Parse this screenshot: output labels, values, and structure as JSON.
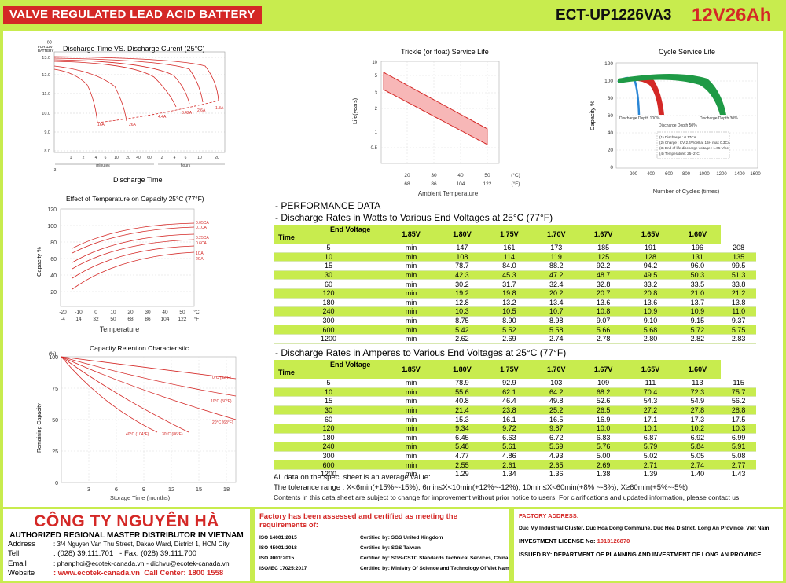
{
  "header": {
    "title": "VALVE REGULATED LEAD ACID BATTERY",
    "model": "ECT-UP1226VA3",
    "rating": "12V26Ah"
  },
  "chart1": {
    "title": "Discharge Time VS. Discharge Curent (25°C)",
    "yunit": "(v)",
    "ynote1": "FOR 12V",
    "ynote2": "BATTERY",
    "yticks": [
      "13.0",
      "12.0",
      "11.0",
      "10.0",
      "9.0",
      "8.0"
    ],
    "xticks": [
      "1",
      "2",
      "4",
      "6",
      "10",
      "20",
      "40",
      "60",
      "2",
      "4",
      "6",
      "10",
      "20"
    ],
    "xbottom": "3",
    "minutes": "minutes",
    "hours": "hours",
    "xlabel": "Discharge Time",
    "curve_labels": [
      "1.3A",
      "2.6A",
      "3.42A",
      "4.4A",
      "16A",
      "26A"
    ]
  },
  "chart2": {
    "title": "Trickle (or float) Service Life",
    "ylabel": "Life(years)",
    "yticks": [
      "10",
      "5",
      "3",
      "2",
      "1",
      "0.5"
    ],
    "xticks_c": [
      "20",
      "30",
      "40",
      "50"
    ],
    "xticks_f": [
      "68",
      "86",
      "104",
      "122"
    ],
    "unit_c": "(°C)",
    "unit_f": "(°F)",
    "xlabel": "Ambient Temperature"
  },
  "chart3": {
    "title": "Cycle Service Life",
    "ylabel": "Capacity %",
    "yticks": [
      "120",
      "100",
      "80",
      "60",
      "40",
      "20",
      "0"
    ],
    "xticks": [
      "200",
      "400",
      "600",
      "800",
      "1000",
      "1200",
      "1400",
      "1600"
    ],
    "xlabel": "Number of Cycles (times)",
    "dod100": "Discharge Depth 100%",
    "dod50": "Discharge Depth 50%",
    "dod30": "Discharge Depth 30%",
    "notes": [
      "(1) Discharge : 0.17CA",
      "(2) Charge : CV 2.4V/cell at 16H max 0.3CA",
      "(3) End of life discharge voltage : 1.65 V/pc",
      "(4) Temperature: 25+2°C"
    ]
  },
  "chart4": {
    "title": "Effect of Temperature on Capacity 25°C (77°F)",
    "ylabel": "Capacity %",
    "yticks": [
      "120",
      "100",
      "80",
      "60",
      "40",
      "20"
    ],
    "xticks_c": [
      "-20",
      "-10",
      "0",
      "10",
      "20",
      "30",
      "40",
      "50"
    ],
    "xticks_f": [
      "-4",
      "14",
      "32",
      "50",
      "68",
      "86",
      "104",
      "122"
    ],
    "unit_c": "°C",
    "unit_f": "°F",
    "xlabel": "Temperature",
    "labels": [
      "0.05CA",
      "0.1CA",
      "0.25CA",
      "0.6CA",
      "1CA",
      "2CA"
    ]
  },
  "chart5": {
    "title": "Capacity Retention Characteristic",
    "yunit": "(%)",
    "ylabel": "Remaining Capacity",
    "yticks": [
      "100",
      "75",
      "50",
      "25",
      "0"
    ],
    "xticks": [
      "3",
      "6",
      "9",
      "12",
      "15",
      "18"
    ],
    "xlabel": "Storage Time (months)",
    "labels": [
      "0°C (32°F)",
      "10°C (50°F)",
      "20°C (68°F)",
      "30°C (86°F)",
      "40°C (104°F)"
    ]
  },
  "performance": {
    "heading": "- PERFORMANCE DATA",
    "watts_title": "- Discharge Rates in Watts to Various End Voltages at 25°C (77°F)",
    "amps_title": "- Discharge Rates in Amperes to Various End Voltages at 25°C (77°F)",
    "end_voltage": "End Voltage",
    "time": "Time",
    "voltages": [
      "1.85V",
      "1.80V",
      "1.75V",
      "1.70V",
      "1.67V",
      "1.65V",
      "1.60V"
    ],
    "times": [
      "5",
      "10",
      "15",
      "30",
      "60",
      "120",
      "180",
      "240",
      "300",
      "600",
      "1200"
    ],
    "unit": "min",
    "watts": [
      [
        "147",
        "161",
        "173",
        "185",
        "191",
        "196",
        "208"
      ],
      [
        "108",
        "114",
        "119",
        "125",
        "128",
        "131",
        "135"
      ],
      [
        "78.7",
        "84.0",
        "88.2",
        "92.2",
        "94.2",
        "96.0",
        "99.5"
      ],
      [
        "42.3",
        "45.3",
        "47.2",
        "48.7",
        "49.5",
        "50.3",
        "51.3"
      ],
      [
        "30.2",
        "31.7",
        "32.4",
        "32.8",
        "33.2",
        "33.5",
        "33.8"
      ],
      [
        "19.2",
        "19.8",
        "20.2",
        "20.7",
        "20.8",
        "21.0",
        "21.2"
      ],
      [
        "12.8",
        "13.2",
        "13.4",
        "13.6",
        "13.6",
        "13.7",
        "13.8"
      ],
      [
        "10.3",
        "10.5",
        "10.7",
        "10.8",
        "10.9",
        "10.9",
        "11.0"
      ],
      [
        "8.75",
        "8.90",
        "8.98",
        "9.07",
        "9.10",
        "9.15",
        "9.37"
      ],
      [
        "5.42",
        "5.52",
        "5.58",
        "5.66",
        "5.68",
        "5.72",
        "5.75"
      ],
      [
        "2.62",
        "2.69",
        "2.74",
        "2.78",
        "2.80",
        "2.82",
        "2.83"
      ]
    ],
    "amps": [
      [
        "78.9",
        "92.9",
        "103",
        "109",
        "111",
        "113",
        "115"
      ],
      [
        "55.6",
        "62.1",
        "64.2",
        "68.2",
        "70.4",
        "72.3",
        "75.7"
      ],
      [
        "40.8",
        "46.4",
        "49.8",
        "52.6",
        "54.3",
        "54.9",
        "56.2"
      ],
      [
        "21.4",
        "23.8",
        "25.2",
        "26.5",
        "27.2",
        "27.8",
        "28.8"
      ],
      [
        "15.3",
        "16.1",
        "16.5",
        "16.9",
        "17.1",
        "17.3",
        "17.5"
      ],
      [
        "9.34",
        "9.72",
        "9.87",
        "10.0",
        "10.1",
        "10.2",
        "10.3"
      ],
      [
        "6.45",
        "6.63",
        "6.72",
        "6.83",
        "6.87",
        "6.92",
        "6.99"
      ],
      [
        "5.48",
        "5.61",
        "5.69",
        "5.76",
        "5.79",
        "5.84",
        "5.91"
      ],
      [
        "4.77",
        "4.86",
        "4.93",
        "5.00",
        "5.02",
        "5.05",
        "5.08"
      ],
      [
        "2.55",
        "2.61",
        "2.65",
        "2.69",
        "2.71",
        "2.74",
        "2.77"
      ],
      [
        "1.29",
        "1.34",
        "1.36",
        "1.38",
        "1.39",
        "1.40",
        "1.43"
      ]
    ],
    "note1": "All data on the spec. sheet is an average value:",
    "note2": "The tolerance range : X<6min(+15%~-15%), 6min≤X<10min(+12%~-12%), 10min≤X<60min(+8% ~-8%), X≥60min(+5%~-5%)",
    "note3": "Contents in this data sheet are subject to change for improvement without prior notice to users. For clarifications and updated information, please contact us."
  },
  "footer": {
    "company": "CÔNG TY NGUYÊN HÀ",
    "subtitle": "AUTHORIZED REGIONAL MASTER DISTRIBUTOR IN VIETNAM",
    "address_k": "Address",
    "address_v": ": 3/4 Nguyen Van Thu Street, Dakao Ward, District 1, HCM City",
    "tell_k": "Tell",
    "tell_v": ": (028) 39.111.701",
    "fax": "- Fax: (028) 39.111.700",
    "email_k": "Email",
    "email_v": ": phanphoi@ecotek-canada.vn",
    "email2": "- dichvu@ecotek-canada.vn",
    "website_k": "Website",
    "website_v": ": www.ecotek-canada.vn",
    "callcenter": "Call Center: 1800 1558",
    "cert_title": "Factory has been assessed and certified as meeting the requirements of:",
    "certs": [
      {
        "name": "ISO 14001:2015",
        "by": "Certified by: SGS United Kingdom"
      },
      {
        "name": "ISO 45001:2018",
        "by": "Certified by: SGS Taiwan"
      },
      {
        "name": "ISO 9001:2015",
        "by": "Certified by: SGS-CSTC Standards Technical Services, China"
      },
      {
        "name": "ISO/IEC 17025:2017",
        "by": "Certified by: Ministry Of Science and Technology Of Viet Nam"
      }
    ],
    "factory_label": "FACTORY ADDRESS:",
    "factory_addr": "Duc My Industrial Cluster, Duc Hoa Dong Commune, Duc Hoa District, Long An Province, Viet Nam",
    "license_label": "INVESTMENT LICENSE No:",
    "license_no": "1013126870",
    "issued": "ISSUED BY: DEPARTMENT OF PLANNING AND INVESTMENT OF LONG AN PROVINCE"
  },
  "colors": {
    "lime": "#c8ec4e",
    "red": "#d42826",
    "blue": "#2a86d6",
    "green": "#1f9a46"
  }
}
